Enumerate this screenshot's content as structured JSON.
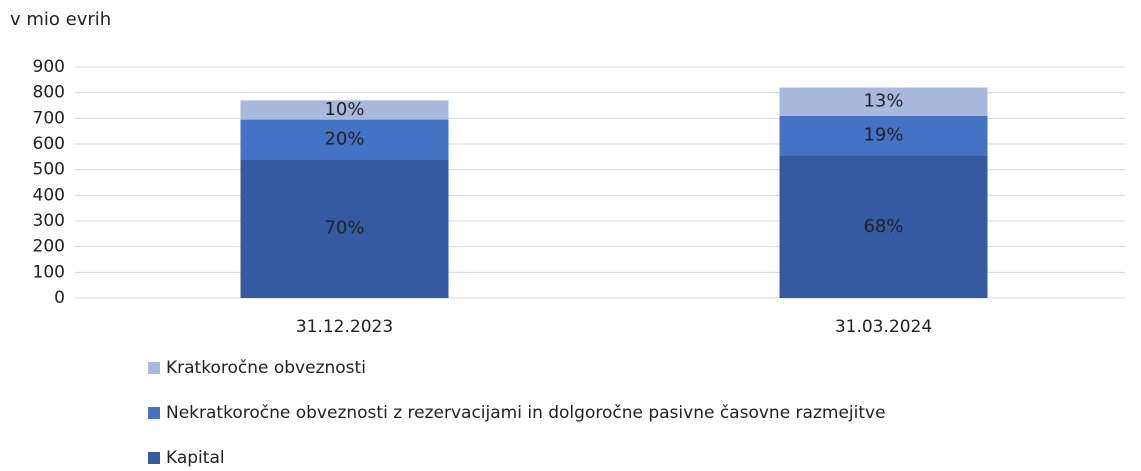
{
  "chart_data": {
    "type": "stacked_bar",
    "title": "v mio evrih",
    "categories": [
      "31.12.2023",
      "31.03.2024"
    ],
    "series": [
      {
        "name": "Kapital",
        "color": "#345ba1",
        "values": [
          540,
          555
        ],
        "share_labels": [
          "70%",
          "68%"
        ]
      },
      {
        "name": "Nekratkoročne obveznosti z rezervacijami in dolgoročne pasivne časovne razmejitve",
        "color": "#4472c4",
        "values": [
          155,
          155
        ],
        "share_labels": [
          "20%",
          "19%"
        ]
      },
      {
        "name": "Kratkoročne obveznosti",
        "color": "#a9b8dd",
        "values": [
          75,
          110
        ],
        "share_labels": [
          "10%",
          "13%"
        ]
      }
    ],
    "ylim": [
      0,
      900
    ],
    "yticks": [
      0,
      100,
      200,
      300,
      400,
      500,
      600,
      700,
      800,
      900
    ],
    "grid": true
  }
}
